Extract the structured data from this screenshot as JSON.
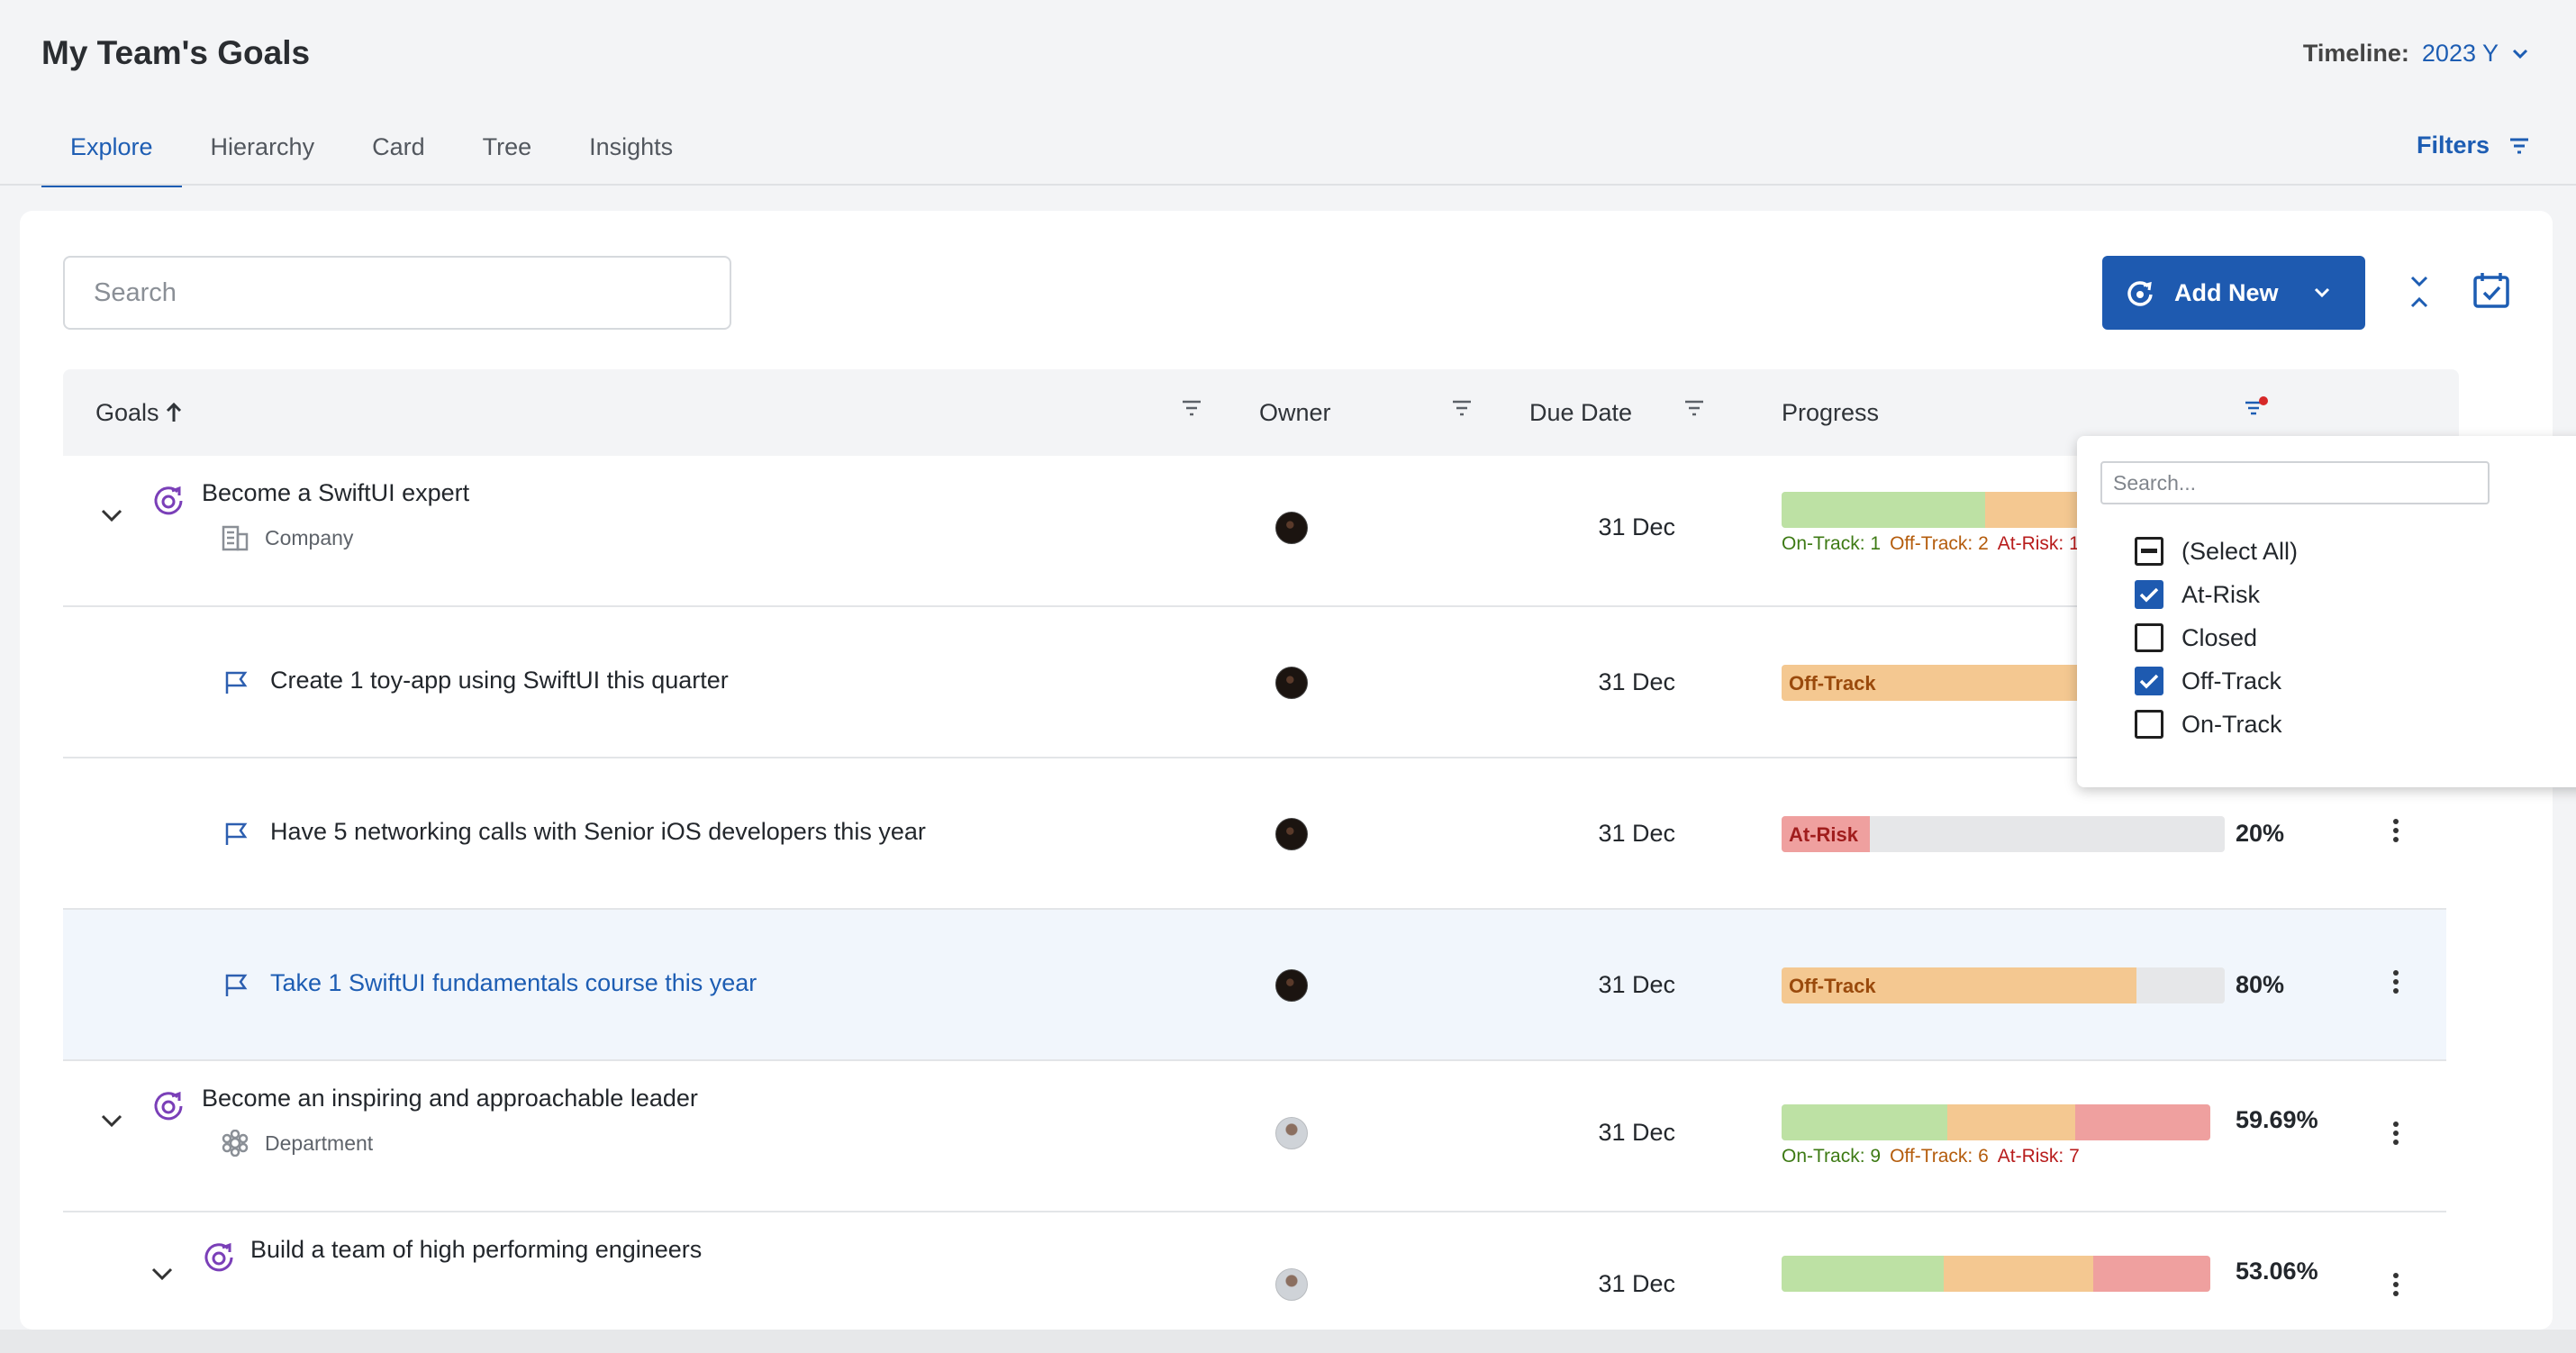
{
  "header": {
    "title": "My Team's Goals",
    "timeline_label": "Timeline:",
    "timeline_value": "2023 Y",
    "filters_label": "Filters"
  },
  "tabs": [
    {
      "label": "Explore",
      "active": true
    },
    {
      "label": "Hierarchy",
      "active": false
    },
    {
      "label": "Card",
      "active": false
    },
    {
      "label": "Tree",
      "active": false
    },
    {
      "label": "Insights",
      "active": false
    }
  ],
  "toolbar": {
    "search_placeholder": "Search",
    "add_new_label": "Add New"
  },
  "table": {
    "columns": {
      "goals": "Goals",
      "owner": "Owner",
      "due_date": "Due Date",
      "progress": "Progress"
    },
    "rows": [
      {
        "title": "Become a SwiftUI expert",
        "subtitle": "Company",
        "due": "31 Dec",
        "legend": {
          "on": "On-Track: 1",
          "off": "Off-Track: 2",
          "risk": "At-Risk: 1"
        }
      },
      {
        "title": "Create 1 toy-app using SwiftUI this quarter",
        "due": "31 Dec",
        "status": "Off-Track"
      },
      {
        "title": "Have 5 networking calls with Senior iOS developers this year",
        "due": "31 Dec",
        "status": "At-Risk",
        "percent": "20%",
        "progress": 0.2
      },
      {
        "title": "Take 1 SwiftUI fundamentals course this year",
        "due": "31 Dec",
        "status": "Off-Track",
        "percent": "80%",
        "progress": 0.8
      },
      {
        "title": "Become an inspiring and approachable leader",
        "subtitle": "Department",
        "due": "31 Dec",
        "percent": "59.69%",
        "legend": {
          "on": "On-Track: 9",
          "off": "Off-Track: 6",
          "risk": "At-Risk: 7"
        }
      },
      {
        "title": "Build a team of high performing engineers",
        "due": "31 Dec",
        "percent": "53.06%"
      }
    ]
  },
  "filter_popup": {
    "search_placeholder": "Search...",
    "options": [
      {
        "label": "(Select All)",
        "state": "indeterminate"
      },
      {
        "label": "At-Risk",
        "state": "checked"
      },
      {
        "label": "Closed",
        "state": "unchecked"
      },
      {
        "label": "Off-Track",
        "state": "checked"
      },
      {
        "label": "On-Track",
        "state": "unchecked"
      }
    ]
  },
  "colors": {
    "accent": "#1e5ab0",
    "on_track": "#bde1a4",
    "off_track": "#f4c891",
    "at_risk": "#efa09f"
  },
  "icons": [
    "chevron-down-icon",
    "filter-icon",
    "goal-target-icon",
    "flag-icon",
    "building-icon",
    "department-icon",
    "kebab-icon",
    "calendar-check-icon",
    "collapse-icon",
    "refresh-target-icon",
    "sort-up-icon"
  ]
}
